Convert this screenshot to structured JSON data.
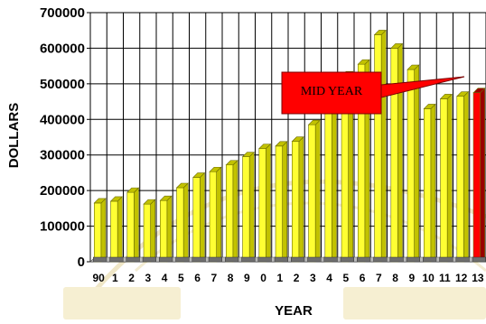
{
  "chart_data": {
    "type": "bar",
    "title": "",
    "xlabel": "YEAR",
    "ylabel": "DOLLARS",
    "ylim": [
      0,
      700000
    ],
    "yticks": [
      0,
      100000,
      200000,
      300000,
      400000,
      500000,
      600000,
      700000
    ],
    "grid": true,
    "categories": [
      "90",
      "1",
      "2",
      "3",
      "4",
      "5",
      "6",
      "7",
      "8",
      "9",
      "0",
      "1",
      "2",
      "3",
      "4",
      "5",
      "6",
      "7",
      "8",
      "9",
      "10",
      "11",
      "12",
      "13"
    ],
    "values": [
      165000,
      170000,
      195000,
      162000,
      172000,
      208000,
      237000,
      253000,
      272000,
      295000,
      318000,
      325000,
      338000,
      385000,
      490000,
      522000,
      555000,
      638000,
      600000,
      540000,
      430000,
      458000,
      465000,
      475000
    ],
    "colors": {
      "bar": "#ffff33",
      "bar_side": "#c2c200",
      "highlight_bar": "#ff0000",
      "highlight_side": "#990000",
      "callout": "#ff0000",
      "gridline": "#000000",
      "base": "#6f6f6f"
    },
    "highlight_index": 23,
    "annotation": {
      "text": "MID YEAR",
      "target_index": 23
    }
  }
}
